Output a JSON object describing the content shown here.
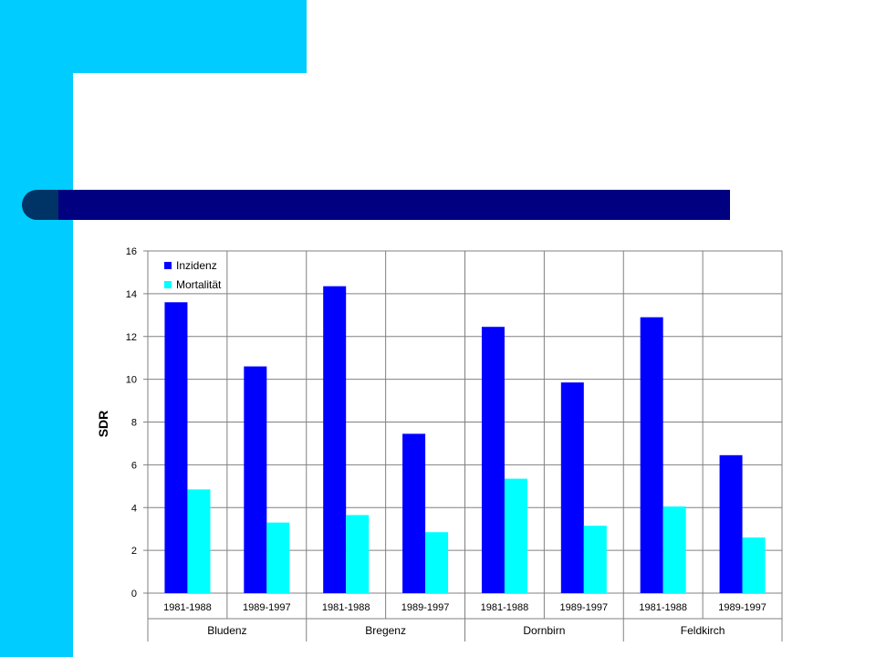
{
  "colors": {
    "accent": "#00ccff",
    "title_bar": "#000080",
    "title_cap": "#003366",
    "inzidenz": "#0000ff",
    "mortalitaet": "#00ffff"
  },
  "chart_data": {
    "type": "bar",
    "ylabel": "SDR",
    "xlabel": "",
    "ylim": [
      0,
      16
    ],
    "yticks": [
      "0",
      "2",
      "4",
      "6",
      "8",
      "10",
      "12",
      "14",
      "16"
    ],
    "grid": true,
    "legend_position": "top-left",
    "categories": [
      "1981-1988",
      "1989-1997",
      "1981-1988",
      "1989-1997",
      "1981-1988",
      "1989-1997",
      "1981-1988",
      "1989-1997"
    ],
    "groups": [
      {
        "label": "Bludenz",
        "span": 2
      },
      {
        "label": "Bregenz",
        "span": 2
      },
      {
        "label": "Dornbirn",
        "span": 2
      },
      {
        "label": "Feldkirch",
        "span": 2
      }
    ],
    "series": [
      {
        "name": "Inzidenz",
        "color": "#0000ff",
        "values": [
          13.6,
          10.6,
          14.35,
          7.45,
          12.45,
          9.85,
          12.9,
          6.45
        ]
      },
      {
        "name": "Mortalität",
        "color": "#00ffff",
        "values": [
          4.85,
          3.3,
          3.65,
          2.85,
          5.35,
          3.15,
          4.05,
          2.6
        ]
      }
    ]
  }
}
